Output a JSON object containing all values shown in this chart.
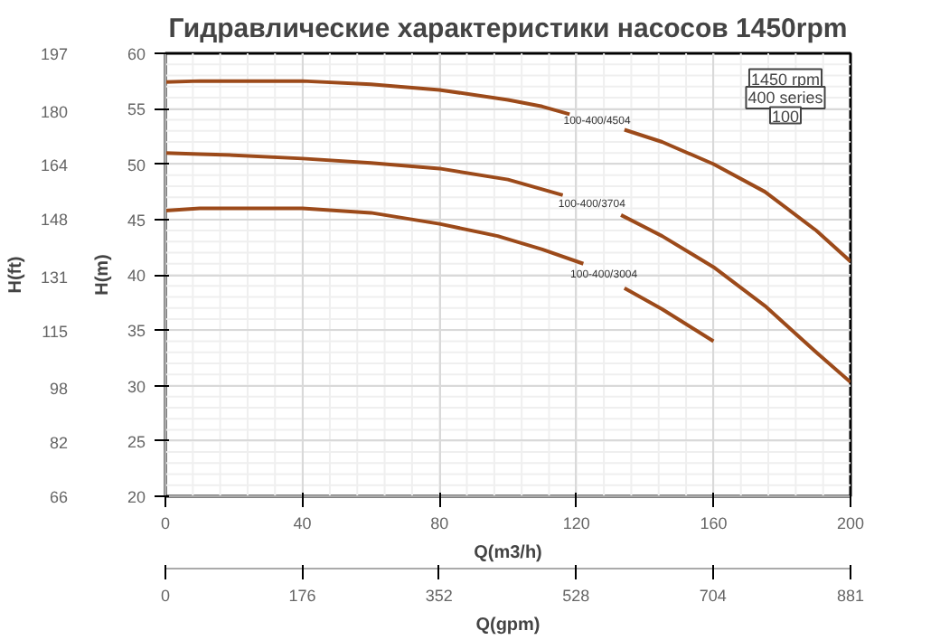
{
  "chart_data": {
    "type": "line",
    "title": "Гидравлические характеристики насосов 1450rpm",
    "xlabel": "Q(m3/h)",
    "ylabel": "H(m)",
    "y2label": "H(ft)",
    "x2label": "Q(gpm)",
    "xlim": [
      0,
      200
    ],
    "xticks": [
      0,
      40,
      80,
      120,
      160,
      200
    ],
    "ylim": [
      20,
      60
    ],
    "yticks": [
      20,
      25,
      30,
      35,
      40,
      45,
      50,
      55,
      60
    ],
    "y2lim": [
      66,
      197
    ],
    "y2ticks": [
      66,
      82,
      98,
      115,
      131,
      148,
      164,
      180,
      197
    ],
    "x2lim": [
      0,
      881
    ],
    "x2ticks": [
      0,
      176,
      352,
      528,
      704,
      881
    ],
    "grid": true,
    "line_style": "solid",
    "marker": "none",
    "series": [
      {
        "name": "100-400/4504",
        "color": "#9c4a1a",
        "x": [
          0,
          10,
          20,
          40,
          60,
          80,
          100,
          110,
          118,
          125,
          134,
          145,
          160,
          175,
          190,
          200
        ],
        "values": [
          57.4,
          57.5,
          57.5,
          57.5,
          57.2,
          56.7,
          55.8,
          55.2,
          54.5,
          null,
          53.1,
          52.0,
          50.0,
          47.5,
          44.0,
          41.2
        ]
      },
      {
        "name": "100-400/3704",
        "color": "#9c4a1a",
        "x": [
          0,
          10,
          20,
          40,
          60,
          80,
          100,
          116,
          125,
          133,
          145,
          160,
          175,
          190,
          200
        ],
        "values": [
          51.0,
          50.9,
          50.8,
          50.5,
          50.1,
          49.6,
          48.6,
          47.2,
          null,
          45.4,
          43.5,
          40.7,
          37.2,
          33.0,
          30.3
        ]
      },
      {
        "name": "100-400/3004",
        "color": "#9c4a1a",
        "x": [
          0,
          10,
          20,
          40,
          60,
          80,
          97,
          110,
          122,
          128,
          134,
          145,
          160
        ],
        "values": [
          45.8,
          46.0,
          46.0,
          46.0,
          45.6,
          44.6,
          43.5,
          42.3,
          41.0,
          null,
          38.8,
          36.9,
          34.0
        ]
      }
    ],
    "annotations": [
      "1450 rpm",
      "400 series",
      "100"
    ]
  }
}
